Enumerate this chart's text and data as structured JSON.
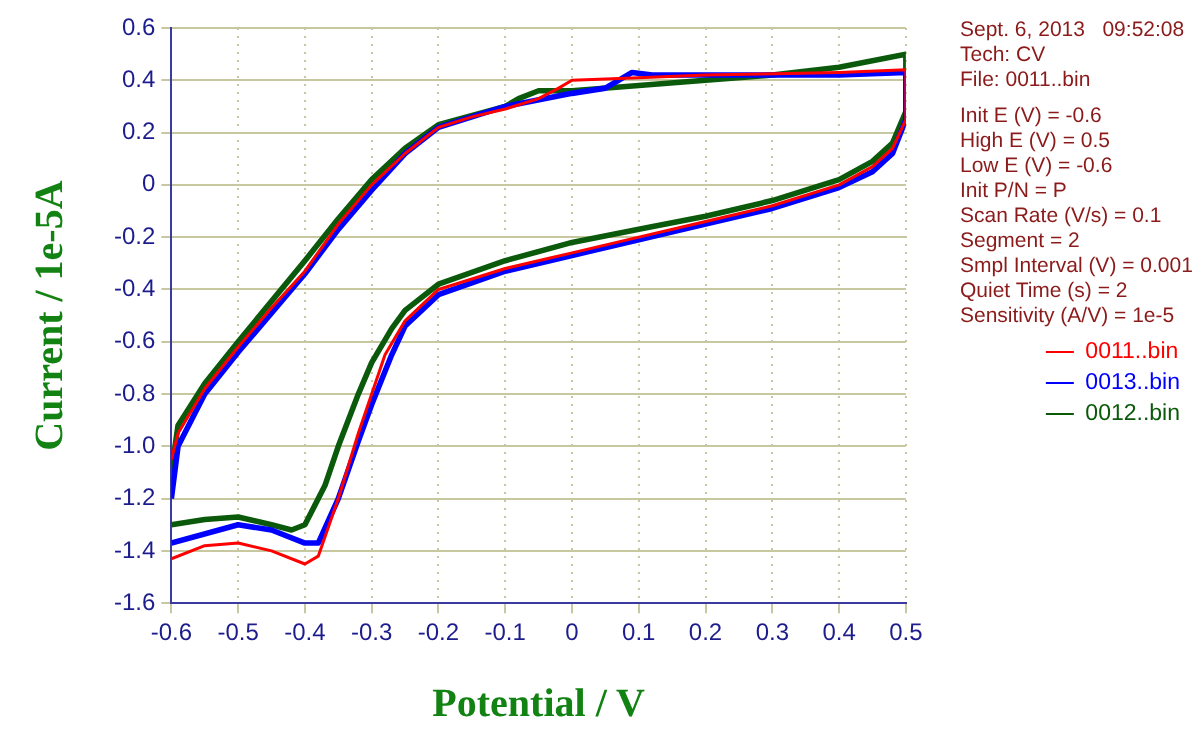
{
  "chart_data": {
    "type": "line",
    "xlabel": "Potential / V",
    "ylabel": "Current / 1e-5A",
    "xlim": [
      -0.6,
      0.5
    ],
    "xticks": [
      -0.6,
      -0.5,
      -0.4,
      -0.3,
      -0.2,
      -0.1,
      0,
      0.1,
      0.2,
      0.3,
      0.4,
      0.5
    ],
    "ylim": [
      -1.6,
      0.6
    ],
    "yticks": [
      0.6,
      0.4,
      0.2,
      0,
      -0.2,
      -0.4,
      -0.6,
      -0.8,
      {
        "value": -1,
        "label": "-1.0"
      },
      -1.2,
      -1.4,
      -1.6
    ],
    "grid": true,
    "legend": "right",
    "marker": "none",
    "line_style": "solid",
    "annotations": [
      "Sept. 6, 2013   09:52:08",
      "Tech: CV",
      "File: 0011..bin",
      "Init E (V) = -0.6",
      "High E (V) = 0.5",
      "Low E (V) = -0.6",
      "Init P/N = P",
      "Scan Rate (V/s) = 0.1",
      "Segment = 2",
      "Smpl Interval (V) = 0.001",
      "Quiet Time (s) = 2",
      "Sensitivity (A/V) = 1e-5"
    ],
    "series": [
      {
        "name": "0011..bin",
        "color": "#ff0000",
        "x": [
          -0.6,
          -0.55,
          -0.5,
          -0.45,
          -0.4,
          -0.38,
          -0.35,
          -0.32,
          -0.3,
          -0.28,
          -0.25,
          -0.2,
          -0.1,
          0,
          0.1,
          0.2,
          0.3,
          0.4,
          0.45,
          0.48,
          0.5,
          0.5,
          0.4,
          0.2,
          0.1,
          0,
          -0.02,
          -0.05,
          -0.1,
          -0.15,
          -0.2,
          -0.25,
          -0.3,
          -0.35,
          -0.4,
          -0.45,
          -0.5,
          -0.55,
          -0.59,
          -0.6
        ],
        "values": [
          -1.43,
          -1.38,
          -1.37,
          -1.4,
          -1.45,
          -1.42,
          -1.2,
          -0.95,
          -0.8,
          -0.65,
          -0.52,
          -0.4,
          -0.32,
          -0.26,
          -0.2,
          -0.14,
          -0.08,
          0,
          0.07,
          0.14,
          0.25,
          0.44,
          0.43,
          0.42,
          0.41,
          0.4,
          0.37,
          0.33,
          0.29,
          0.26,
          0.22,
          0.12,
          0,
          -0.15,
          -0.33,
          -0.47,
          -0.62,
          -0.78,
          -0.95,
          -1.05
        ]
      },
      {
        "name": "0013..bin",
        "color": "#0000ff",
        "x": [
          -0.6,
          -0.5,
          -0.45,
          -0.4,
          -0.38,
          -0.35,
          -0.32,
          -0.3,
          -0.27,
          -0.25,
          -0.2,
          -0.1,
          0,
          0.1,
          0.2,
          0.3,
          0.4,
          0.45,
          0.48,
          0.5,
          0.5,
          0.4,
          0.2,
          0.12,
          0.09,
          0.05,
          0,
          -0.1,
          -0.2,
          -0.25,
          -0.3,
          -0.35,
          -0.4,
          -0.5,
          -0.55,
          -0.59,
          -0.6
        ],
        "values": [
          -1.37,
          -1.3,
          -1.32,
          -1.37,
          -1.37,
          -1.2,
          -0.98,
          -0.84,
          -0.65,
          -0.54,
          -0.42,
          -0.33,
          -0.27,
          -0.21,
          -0.15,
          -0.09,
          -0.01,
          0.05,
          0.12,
          0.25,
          0.43,
          0.42,
          0.42,
          0.42,
          0.43,
          0.37,
          0.35,
          0.3,
          0.22,
          0.12,
          -0.02,
          -0.17,
          -0.34,
          -0.64,
          -0.8,
          -1,
          -1.2
        ]
      },
      {
        "name": "0012..bin",
        "color": "#0b5a0b",
        "x": [
          -0.6,
          -0.55,
          -0.5,
          -0.45,
          -0.42,
          -0.4,
          -0.37,
          -0.35,
          -0.32,
          -0.3,
          -0.27,
          -0.25,
          -0.2,
          -0.1,
          0,
          0.1,
          0.2,
          0.3,
          0.4,
          0.45,
          0.48,
          0.5,
          0.5,
          0.4,
          0.3,
          0.2,
          0.1,
          0,
          -0.05,
          -0.08,
          -0.1,
          -0.2,
          -0.25,
          -0.3,
          -0.35,
          -0.4,
          -0.5,
          -0.55,
          -0.59,
          -0.6
        ],
        "values": [
          -1.3,
          -1.28,
          -1.27,
          -1.3,
          -1.32,
          -1.3,
          -1.15,
          -1,
          -0.8,
          -0.68,
          -0.55,
          -0.48,
          -0.38,
          -0.29,
          -0.22,
          -0.17,
          -0.12,
          -0.06,
          0.02,
          0.09,
          0.16,
          0.28,
          0.5,
          0.45,
          0.42,
          0.4,
          0.38,
          0.36,
          0.36,
          0.33,
          0.3,
          0.23,
          0.14,
          0.02,
          -0.13,
          -0.29,
          -0.6,
          -0.76,
          -0.92,
          -1.1
        ]
      }
    ]
  }
}
